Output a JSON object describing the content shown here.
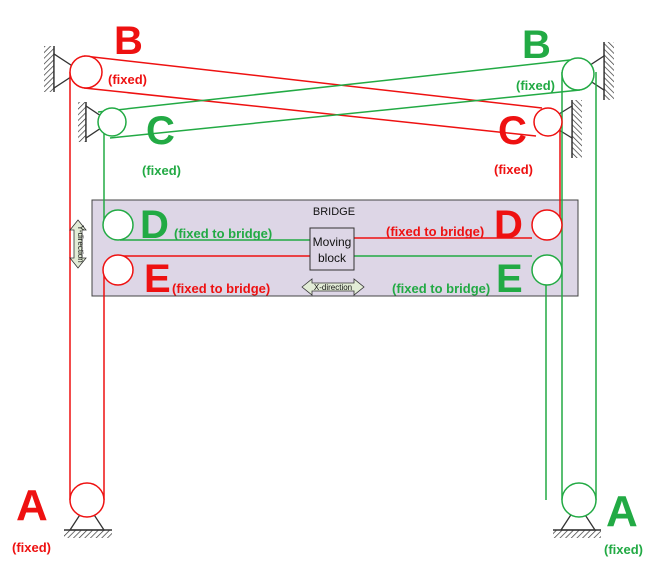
{
  "colors": {
    "red": "#ee1111",
    "green": "#22aa44",
    "bridge_fill": "#ddd6e6",
    "bridge_stroke": "#444444"
  },
  "labels": {
    "B_left": "B",
    "B_left_note": "(fixed)",
    "B_right": "B",
    "B_right_note": "(fixed)",
    "C_left": "C",
    "C_left_note": "(fixed)",
    "C_right": "C",
    "C_right_note": "(fixed)",
    "D_left": "D",
    "D_left_note": "(fixed to bridge)",
    "D_right": "D",
    "D_right_note": "(fixed to bridge)",
    "E_left": "E",
    "E_left_note": "(fixed to bridge)",
    "E_right": "E",
    "E_right_note": "(fixed to bridge)",
    "A_left": "A",
    "A_left_note": "(fixed)",
    "A_right": "A",
    "A_right_note": "(fixed)"
  },
  "bridge": {
    "title": "BRIDGE",
    "block_line1": "Moving",
    "block_line2": "block"
  },
  "arrows": {
    "x_direction": "X-direction",
    "y_direction": "Y-direction"
  }
}
